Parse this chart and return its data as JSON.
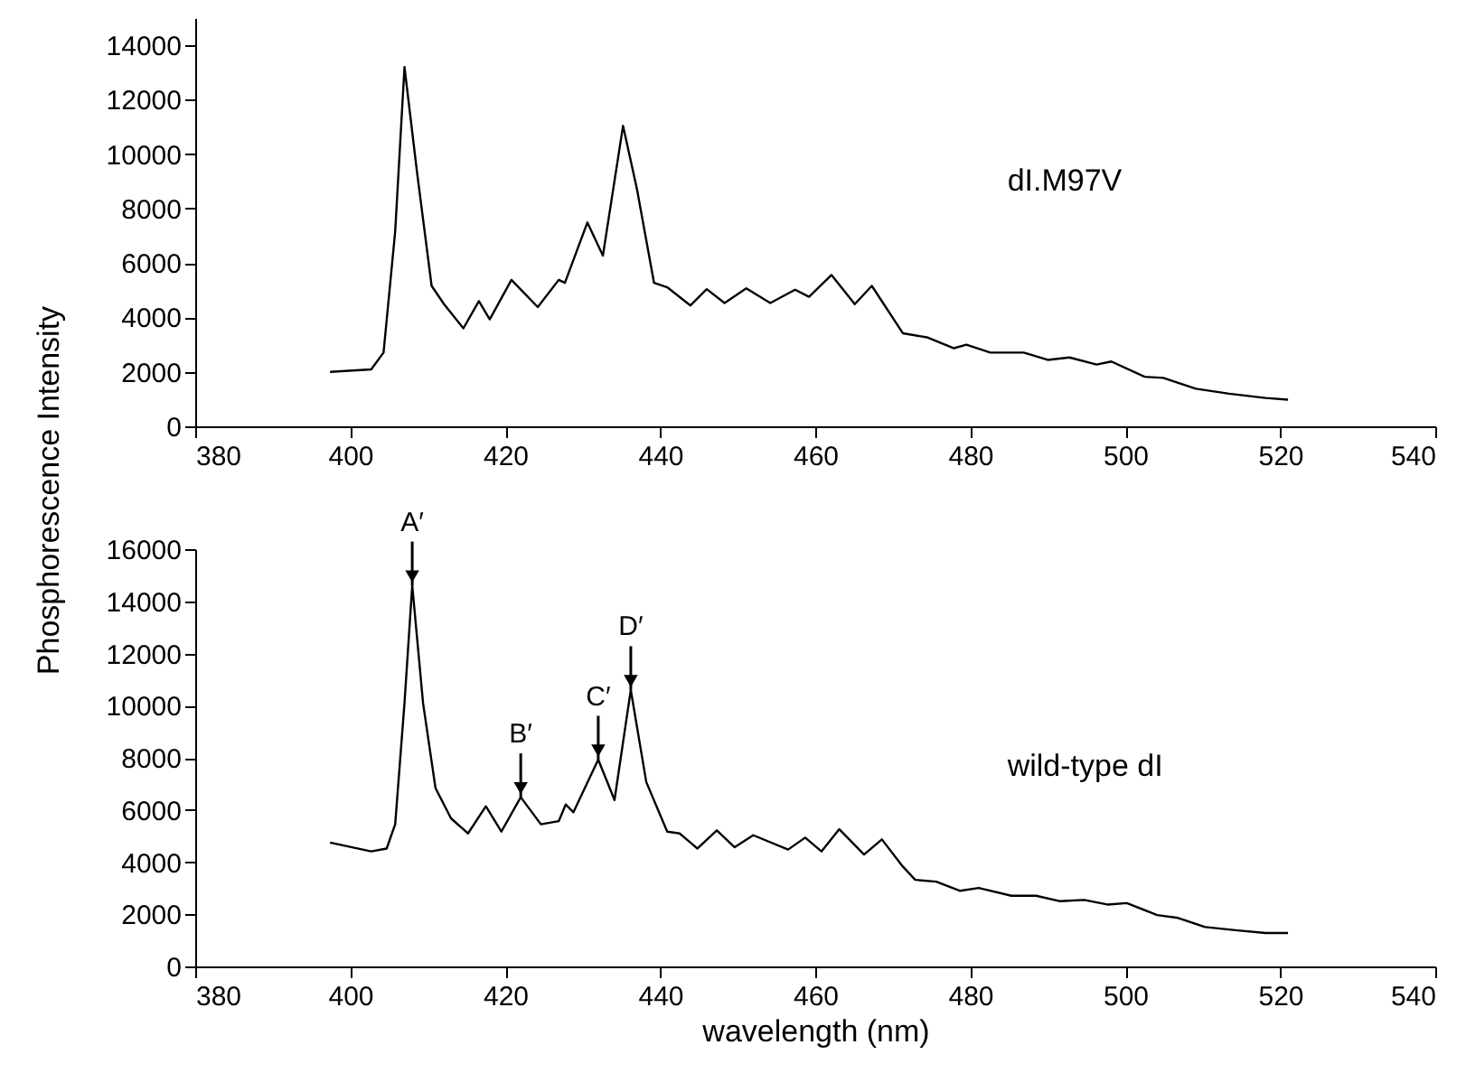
{
  "chart_data": [
    {
      "type": "line",
      "ylabel": "Phosphorescence Intensity",
      "xlim": [
        380,
        540
      ],
      "xticks": [
        380,
        400,
        420,
        440,
        460,
        480,
        500,
        520,
        540
      ],
      "ylim": [
        0,
        15000
      ],
      "yticks": [
        0,
        2000,
        4000,
        6000,
        8000,
        10000,
        12000,
        14000
      ],
      "grid": false,
      "series": [
        {
          "name": "dI.M97V",
          "color": "#000000",
          "x": [
            397.4,
            402.7,
            404.3,
            405.8,
            407.0,
            408.6,
            410.5,
            412.1,
            414.6,
            416.6,
            418.0,
            420.8,
            424.2,
            426.9,
            427.7,
            430.6,
            432.6,
            435.2,
            437.0,
            439.2,
            440.9,
            443.9,
            446.0,
            448.3,
            451.1,
            454.2,
            457.4,
            459.2,
            462.1,
            465.1,
            467.3,
            471.3,
            474.4,
            477.9,
            479.5,
            482.6,
            486.9,
            490.0,
            492.8,
            496.3,
            498.2,
            502.5,
            504.9,
            509.1,
            513.4,
            518.1,
            521.0
          ],
          "values": [
            2000,
            2090,
            2710,
            7160,
            13200,
            9380,
            5160,
            4490,
            3600,
            4600,
            3930,
            5380,
            4380,
            5380,
            5270,
            7490,
            6270,
            11040,
            8710,
            5270,
            5110,
            4440,
            5040,
            4530,
            5070,
            4530,
            5020,
            4760,
            5560,
            4490,
            5160,
            3420,
            3270,
            2870,
            3000,
            2710,
            2710,
            2440,
            2530,
            2270,
            2380,
            1820,
            1780,
            1380,
            1200,
            1040,
            980
          ]
        }
      ]
    },
    {
      "type": "line",
      "xlabel": "wavelength (nm)",
      "xlim": [
        380,
        540
      ],
      "xticks": [
        380,
        400,
        420,
        440,
        460,
        480,
        500,
        520,
        540
      ],
      "ylim": [
        0,
        16000
      ],
      "yticks": [
        0,
        2000,
        4000,
        6000,
        8000,
        10000,
        12000,
        14000,
        16000
      ],
      "grid": false,
      "series": [
        {
          "name": "wild-type dI",
          "color": "#000000",
          "x": [
            397.4,
            402.7,
            404.7,
            405.8,
            407.0,
            408.0,
            409.4,
            411.0,
            413.0,
            415.2,
            417.5,
            419.5,
            422.0,
            424.6,
            426.9,
            427.8,
            428.8,
            432.0,
            434.1,
            436.2,
            438.2,
            440.9,
            442.5,
            444.8,
            447.3,
            449.6,
            452.0,
            456.5,
            458.7,
            460.8,
            463.1,
            466.3,
            468.6,
            471.3,
            472.9,
            475.6,
            478.7,
            481.1,
            485.3,
            488.5,
            491.6,
            494.7,
            497.8,
            500.2,
            504.1,
            506.8,
            510.3,
            514.2,
            518.1,
            521.0
          ],
          "values": [
            4750,
            4410,
            4520,
            5450,
            10090,
            14610,
            10090,
            6840,
            5680,
            5100,
            6140,
            5170,
            6490,
            5450,
            5570,
            6210,
            5910,
            7930,
            6380,
            10600,
            7070,
            5170,
            5100,
            4520,
            5220,
            4570,
            5030,
            4480,
            4940,
            4410,
            5260,
            4290,
            4870,
            3830,
            3320,
            3250,
            2900,
            3010,
            2710,
            2710,
            2500,
            2550,
            2370,
            2430,
            1970,
            1860,
            1510,
            1390,
            1280,
            1280
          ]
        }
      ],
      "annotations": [
        {
          "text": "A′",
          "x": 408.0,
          "y": 14610
        },
        {
          "text": "B′",
          "x": 422.0,
          "y": 6490
        },
        {
          "text": "C′",
          "x": 432.0,
          "y": 7930
        },
        {
          "text": "D′",
          "x": 436.2,
          "y": 10600
        }
      ]
    }
  ]
}
